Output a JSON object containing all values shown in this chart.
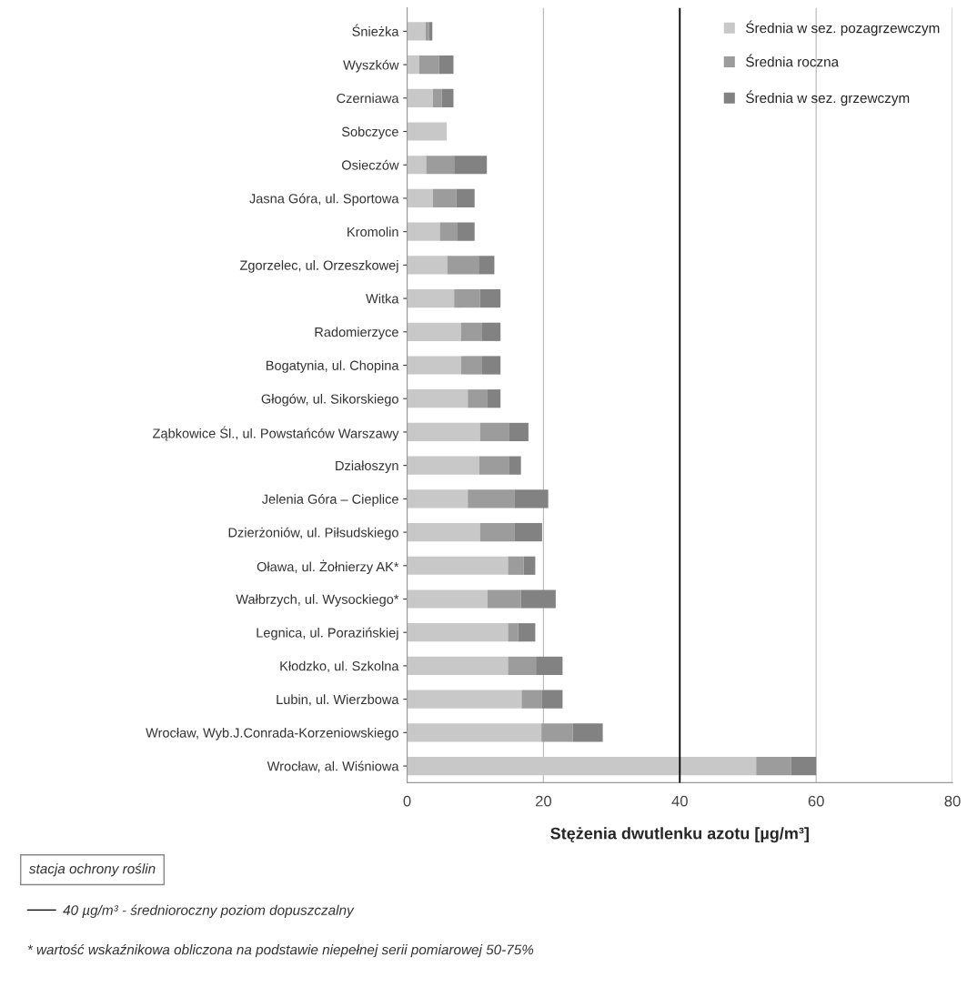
{
  "chart_data": {
    "type": "bar",
    "orientation": "horizontal",
    "stacked": true,
    "xlabel": "Stężenia dwutlenku azotu [µg/m³]",
    "categories": [
      "Śnieżka",
      "Wyszków",
      "Czerniawa",
      "Sobczyce",
      "Osieczów",
      "Jasna Góra, ul. Sportowa",
      "Kromolin",
      "Zgorzelec, ul. Orzeszkowej",
      "Witka",
      "Radomierzyce",
      "Bogatynia, ul. Chopina",
      "Głogów, ul. Sikorskiego",
      "Ząbkowice Śl., ul. Powstańców Warszawy",
      "Działoszyn",
      "Jelenia Góra – Cieplice",
      "Dzierżoniów, ul. Piłsudskiego",
      "Oława, ul. Żołnierzy AK*",
      "Wałbrzych, ul. Wysockiego*",
      "Legnica, ul. Porazińskiej",
      "Kłodzko, ul. Szkolna",
      "Lubin, ul. Wierzbowa",
      "Wrocław, Wyb.J.Conrada-Korzeniowskiego",
      "Wrocław, al. Wiśniowa"
    ],
    "series": [
      {
        "name": "Średnia w sez. pozagrzewczym",
        "color": "#c8c8c8",
        "values": [
          2.7,
          1.8,
          3.8,
          5.8,
          2.8,
          3.8,
          4.8,
          5.9,
          6.9,
          7.9,
          7.9,
          8.9,
          10.7,
          10.6,
          8.9,
          10.7,
          14.8,
          11.8,
          14.8,
          14.8,
          16.8,
          19.7,
          51.2
        ]
      },
      {
        "name": "Średnia roczna",
        "color": "#9c9c9c",
        "values": [
          0.5,
          2.9,
          1.3,
          null,
          4.1,
          3.4,
          2.6,
          4.6,
          3.8,
          3.1,
          3.1,
          2.9,
          4.3,
          4.4,
          6.9,
          5.1,
          2.3,
          4.9,
          1.5,
          4.1,
          3.0,
          4.6,
          5.1
        ]
      },
      {
        "name": "Średnia w sez. grzewczym",
        "color": "#828282",
        "values": [
          0.5,
          2.1,
          1.7,
          null,
          4.8,
          2.7,
          2.5,
          2.3,
          3.0,
          2.7,
          2.7,
          1.9,
          2.8,
          1.7,
          4.9,
          4.0,
          1.7,
          5.1,
          2.5,
          3.9,
          3.0,
          4.4,
          3.7
        ]
      }
    ],
    "xlim": [
      0,
      80
    ],
    "xticks": [
      0,
      20,
      40,
      60,
      80
    ],
    "grid": "x",
    "legend": "top right",
    "ref_lines": [
      {
        "axis": "x",
        "value": 40,
        "color": "#000000",
        "line_style": "solid"
      }
    ],
    "annotations": [
      "stacja ochrony roślin",
      "40 µg/m³ - średnioroczny poziom dopuszczalny",
      "* wartość wskaźnikowa obliczona na podstawie niepełnej serii pomiarowej 50-75%"
    ]
  }
}
